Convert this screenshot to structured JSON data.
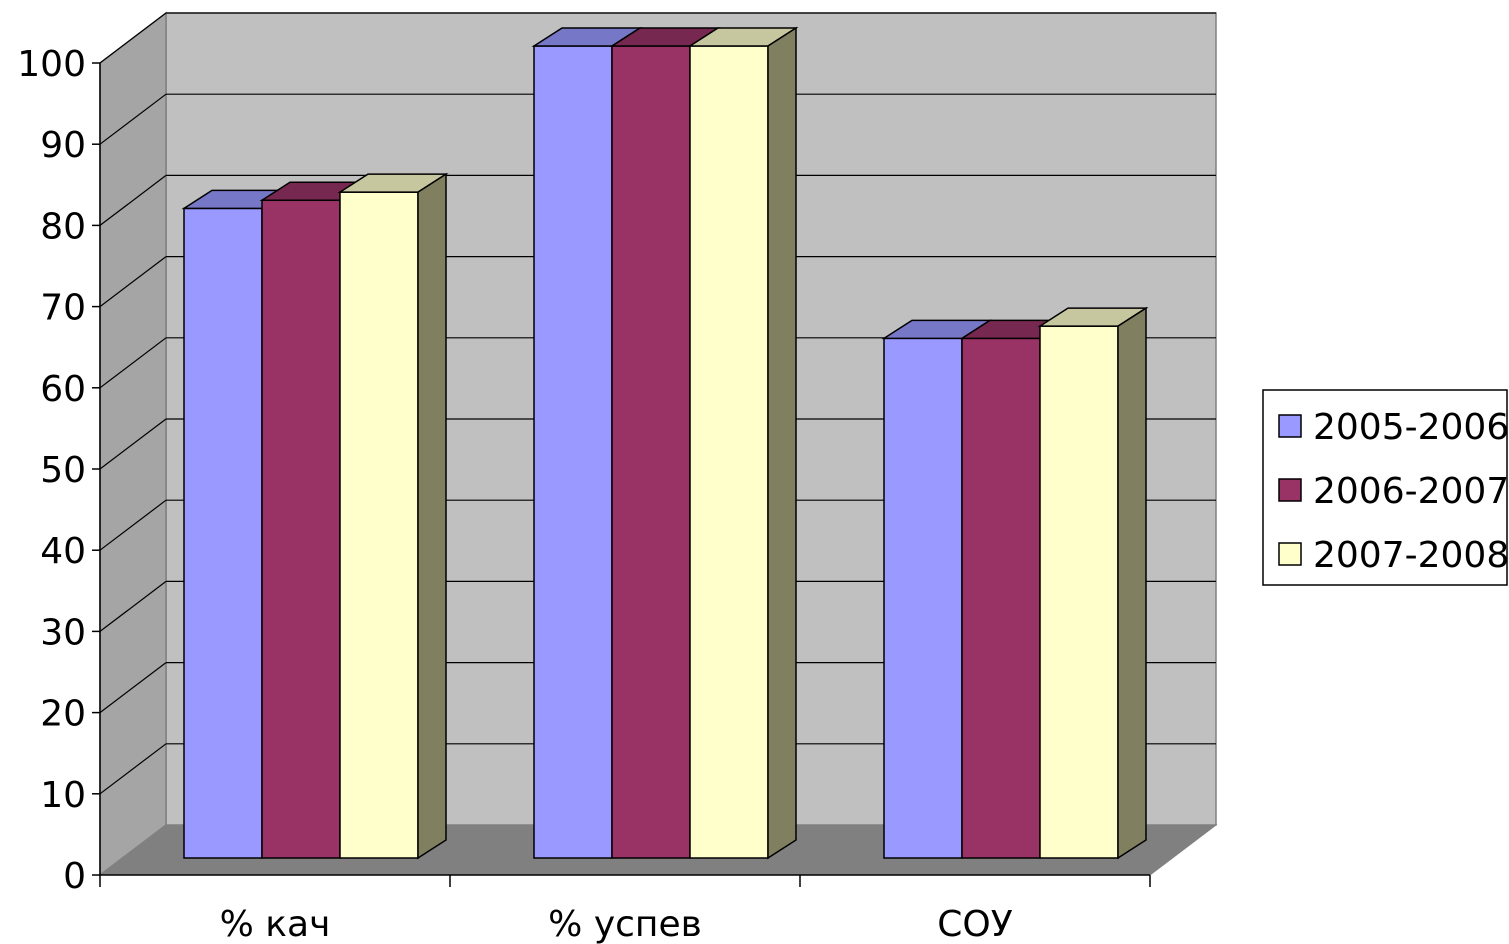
{
  "chart_data": {
    "type": "bar",
    "title": "",
    "xlabel": "",
    "ylabel": "",
    "ylim": [
      0,
      100
    ],
    "yticks": [
      0,
      10,
      20,
      30,
      40,
      50,
      60,
      70,
      80,
      90,
      100
    ],
    "categories": [
      "% кач",
      "% успев",
      "СОУ"
    ],
    "series": [
      {
        "name": "2005-2006",
        "values": [
          80,
          100,
          64
        ],
        "color": "#9999ff"
      },
      {
        "name": "2006-2007",
        "values": [
          81,
          100,
          64
        ],
        "color": "#993366"
      },
      {
        "name": "2007-2008",
        "values": [
          82,
          100,
          65.5
        ],
        "color": "#ffffcc"
      }
    ],
    "grid": true,
    "legend_position": "right",
    "style": "3d-column",
    "wall_color": "#c0c0c0",
    "floor_color": "#808080"
  }
}
